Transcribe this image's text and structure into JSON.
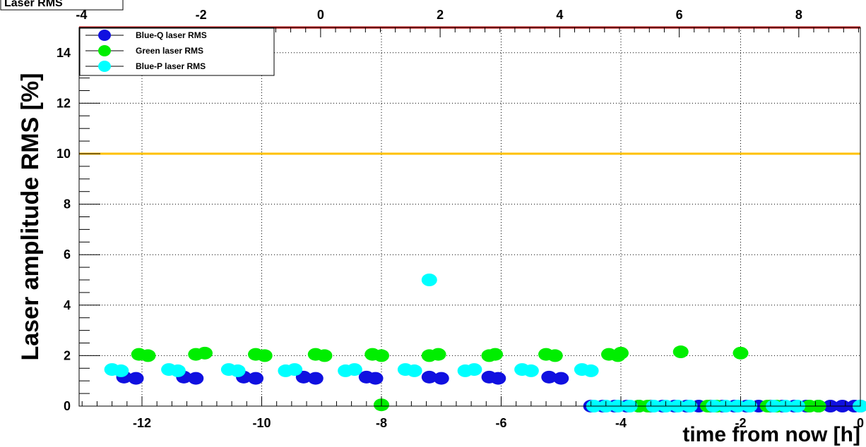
{
  "title": "Laser RMS",
  "chart_data": {
    "type": "scatter",
    "title": "Laser RMS",
    "xlabel": "time from now [h]",
    "ylabel": "Laser amplitude RMS [%]",
    "xlim": [
      -13.05,
      0
    ],
    "ylim": [
      0,
      15
    ],
    "x_ticks": [
      -12,
      -10,
      -8,
      -6,
      -4,
      -2,
      0
    ],
    "y_ticks": [
      0,
      2,
      4,
      6,
      8,
      10,
      12,
      14
    ],
    "top_axis": {
      "lim": [
        -4.04,
        9.03
      ],
      "ticks": [
        -4,
        -2,
        0,
        2,
        4,
        6,
        8
      ]
    },
    "grid": true,
    "legend_position": "top-left",
    "threshold_lines": [
      {
        "y": 10,
        "color": "#ffc000"
      },
      {
        "y": 15,
        "color": "#cc0000"
      }
    ],
    "series": [
      {
        "name": "Blue-Q laser RMS",
        "color": "#1010e0",
        "points": [
          [
            -12.3,
            1.15
          ],
          [
            -12.1,
            1.1
          ],
          [
            -11.3,
            1.15
          ],
          [
            -11.1,
            1.1
          ],
          [
            -10.3,
            1.15
          ],
          [
            -10.1,
            1.1
          ],
          [
            -9.3,
            1.15
          ],
          [
            -9.1,
            1.1
          ],
          [
            -8.25,
            1.15
          ],
          [
            -8.1,
            1.1
          ],
          [
            -7.2,
            1.15
          ],
          [
            -7.0,
            1.1
          ],
          [
            -6.2,
            1.15
          ],
          [
            -6.05,
            1.1
          ],
          [
            -5.2,
            1.15
          ],
          [
            -5.0,
            1.1
          ],
          [
            -4.5,
            0
          ],
          [
            -4.3,
            0
          ],
          [
            -4.1,
            0
          ],
          [
            -3.9,
            0
          ],
          [
            -3.7,
            0
          ],
          [
            -3.5,
            0
          ],
          [
            -3.3,
            0
          ],
          [
            -3.1,
            0
          ],
          [
            -2.9,
            0
          ],
          [
            -2.7,
            0
          ],
          [
            -2.5,
            0
          ],
          [
            -2.3,
            0
          ],
          [
            -2.1,
            0
          ],
          [
            -1.9,
            0
          ],
          [
            -1.7,
            0
          ],
          [
            -1.5,
            0
          ],
          [
            -1.3,
            0
          ],
          [
            -1.1,
            0
          ],
          [
            -0.9,
            0
          ],
          [
            -0.7,
            0
          ],
          [
            -0.5,
            0
          ],
          [
            -0.3,
            0
          ],
          [
            -0.1,
            0
          ],
          [
            0,
            0
          ]
        ]
      },
      {
        "name": "Green laser RMS",
        "color": "#00ee00",
        "points": [
          [
            -12.05,
            2.05
          ],
          [
            -11.9,
            2.0
          ],
          [
            -11.1,
            2.05
          ],
          [
            -10.95,
            2.1
          ],
          [
            -10.1,
            2.05
          ],
          [
            -9.95,
            2.0
          ],
          [
            -9.1,
            2.05
          ],
          [
            -8.95,
            2.0
          ],
          [
            -8.15,
            2.05
          ],
          [
            -8.0,
            2.0
          ],
          [
            -7.2,
            2.0
          ],
          [
            -7.05,
            2.05
          ],
          [
            -6.2,
            2.0
          ],
          [
            -6.1,
            2.05
          ],
          [
            -5.25,
            2.05
          ],
          [
            -5.1,
            2.0
          ],
          [
            -4.2,
            2.05
          ],
          [
            -4.05,
            2.0
          ],
          [
            -8.0,
            0.05
          ],
          [
            -4.0,
            2.1
          ],
          [
            -3.0,
            2.15
          ],
          [
            -2.0,
            2.1
          ],
          [
            -3.7,
            0
          ],
          [
            -3.55,
            0
          ],
          [
            -2.55,
            0
          ],
          [
            -2.4,
            0
          ],
          [
            -1.55,
            0
          ],
          [
            -1.4,
            0
          ],
          [
            -0.85,
            0
          ],
          [
            -0.7,
            0
          ]
        ]
      },
      {
        "name": "Blue-P laser RMS",
        "color": "#00ffff",
        "points": [
          [
            -12.5,
            1.45
          ],
          [
            -12.35,
            1.4
          ],
          [
            -11.55,
            1.45
          ],
          [
            -11.4,
            1.4
          ],
          [
            -10.55,
            1.45
          ],
          [
            -10.4,
            1.4
          ],
          [
            -9.6,
            1.4
          ],
          [
            -9.45,
            1.45
          ],
          [
            -8.6,
            1.4
          ],
          [
            -8.45,
            1.45
          ],
          [
            -7.6,
            1.45
          ],
          [
            -7.45,
            1.4
          ],
          [
            -6.6,
            1.4
          ],
          [
            -6.45,
            1.45
          ],
          [
            -5.65,
            1.45
          ],
          [
            -5.5,
            1.4
          ],
          [
            -4.65,
            1.45
          ],
          [
            -4.5,
            1.4
          ],
          [
            -7.2,
            5.0
          ],
          [
            -4.45,
            0
          ],
          [
            -4.25,
            0
          ],
          [
            -4.05,
            0
          ],
          [
            -3.85,
            0
          ],
          [
            -3.45,
            0
          ],
          [
            -3.25,
            0
          ],
          [
            -3.05,
            0
          ],
          [
            -2.85,
            0
          ],
          [
            -2.45,
            0
          ],
          [
            -2.25,
            0
          ],
          [
            -2.05,
            0
          ],
          [
            -1.85,
            0
          ],
          [
            -1.45,
            0
          ],
          [
            -1.25,
            0
          ],
          [
            -1.05,
            0
          ],
          [
            0,
            0
          ]
        ]
      }
    ]
  }
}
